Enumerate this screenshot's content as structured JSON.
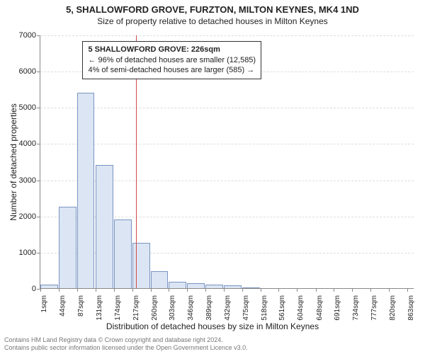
{
  "titles": {
    "main": "5, SHALLOWFORD GROVE, FURZTON, MILTON KEYNES, MK4 1ND",
    "sub": "Size of property relative to detached houses in Milton Keynes"
  },
  "chart": {
    "type": "histogram",
    "y_label": "Number of detached properties",
    "x_label": "Distribution of detached houses by size in Milton Keynes",
    "x_min_sqm": 1,
    "x_max_sqm": 880,
    "y_min": 0,
    "y_max": 7000,
    "y_ticks": [
      0,
      1000,
      2000,
      3000,
      4000,
      5000,
      6000,
      7000
    ],
    "x_tick_sqm": [
      1,
      44,
      87,
      131,
      174,
      217,
      260,
      303,
      346,
      389,
      432,
      475,
      518,
      561,
      604,
      648,
      691,
      734,
      777,
      820,
      863
    ],
    "x_tick_labels": [
      "1sqm",
      "44sqm",
      "87sqm",
      "131sqm",
      "174sqm",
      "217sqm",
      "260sqm",
      "303sqm",
      "346sqm",
      "389sqm",
      "432sqm",
      "475sqm",
      "518sqm",
      "561sqm",
      "604sqm",
      "648sqm",
      "691sqm",
      "734sqm",
      "777sqm",
      "820sqm",
      "863sqm"
    ],
    "bar_width_sqm": 43,
    "bar_fill": "#dbe5f3",
    "bar_stroke": "#7a94c2",
    "background_color": "#ffffff",
    "grid_color": "#dddddd",
    "bars_sqm_start": [
      1,
      44,
      87,
      131,
      174,
      217,
      260,
      303,
      346,
      389,
      432,
      475
    ],
    "bar_values": [
      90,
      2250,
      5400,
      3400,
      1900,
      1250,
      460,
      180,
      130,
      105,
      80,
      20
    ],
    "reference_line": {
      "sqm": 226,
      "color": "#d24a4a"
    },
    "info_box": {
      "left_sqm": 100,
      "top_val": 6850,
      "lines": [
        "5 SHALLOWFORD GROVE: 226sqm",
        "← 96% of detached houses are smaller (12,585)",
        "4% of semi-detached houses are larger (585) →"
      ]
    }
  },
  "footer": {
    "line1": "Contains HM Land Registry data © Crown copyright and database right 2024.",
    "line2": "Contains public sector information licensed under the Open Government Licence v3.0."
  }
}
